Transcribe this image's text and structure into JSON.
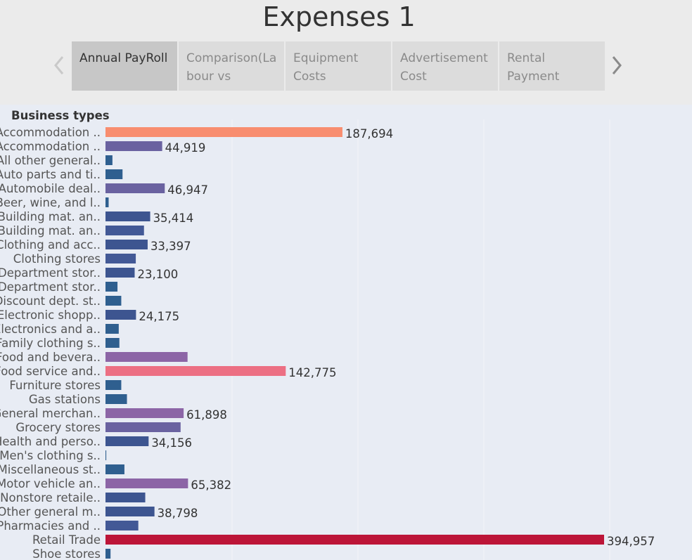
{
  "header": {
    "title": "Expenses 1"
  },
  "tabs": [
    {
      "label": "Annual PayRoll",
      "active": true
    },
    {
      "label": "Comparison(Labour vs",
      "active": false
    },
    {
      "label": "Equipment Costs",
      "active": false
    },
    {
      "label": "Advertisement Cost",
      "active": false
    },
    {
      "label": "Rental Payment",
      "active": false
    }
  ],
  "icons": {
    "prev": "chevron-left-icon",
    "next": "chevron-right-icon"
  },
  "colors": {
    "background": "#ebebeb",
    "chart_background": "#e8ecf4"
  },
  "chart_data": {
    "type": "bar",
    "orientation": "horizontal",
    "title": "",
    "row_header": "Business types",
    "xlabel": "",
    "ylabel": "",
    "xlim": [
      0,
      420000
    ],
    "grid": true,
    "categories": [
      "Accommodation ..",
      "Accommodation ..",
      "All other general..",
      "Auto parts and ti..",
      "Automobile deal..",
      "Beer, wine, and l..",
      "Building mat. an..",
      "Building mat. an..",
      "Clothing and acc..",
      "Clothing stores",
      "Department stor..",
      "Department stor..",
      "Discount dept. st..",
      "Electronic shopp..",
      "Electronics and a..",
      "Family clothing s..",
      "Food and bevera..",
      "Food service and..",
      "Furniture stores",
      "Gas stations",
      "General merchan..",
      "Grocery stores",
      "Health and perso..",
      "Men's clothing s..",
      "Miscellaneous st..",
      "Motor vehicle an..",
      "Nonstore retaile..",
      "Other general m..",
      "Pharmacies and ..",
      "Retail Trade",
      "Shoe stores"
    ],
    "values": [
      187694,
      44919,
      5500,
      13500,
      46947,
      2500,
      35414,
      30500,
      33397,
      24000,
      23100,
      9500,
      12500,
      24175,
      10500,
      11000,
      65000,
      142775,
      12500,
      17000,
      61898,
      59500,
      34156,
      600,
      15000,
      65382,
      31500,
      38798,
      26000,
      394957,
      4000
    ],
    "data_labels": [
      "187,694",
      "44,919",
      "",
      "",
      "46,947",
      "",
      "35,414",
      "",
      "33,397",
      "",
      "23,100",
      "",
      "",
      "24,175",
      "",
      "",
      "",
      "142,775",
      "",
      "",
      "61,898",
      "",
      "34,156",
      "",
      "",
      "65,382",
      "",
      "38,798",
      "",
      "394,957",
      ""
    ],
    "colors": [
      "#f88d6f",
      "#6a62a0",
      "#2f5f8f",
      "#2f5f8f",
      "#6a62a0",
      "#2f5f8f",
      "#3d5590",
      "#435996",
      "#3d5590",
      "#435996",
      "#3d5590",
      "#2f5f8f",
      "#2f5f8f",
      "#3d5590",
      "#2f5f8f",
      "#2f5f8f",
      "#8c65a6",
      "#ec6f83",
      "#2f5f8f",
      "#2f5f8f",
      "#8c65a6",
      "#6a62a0",
      "#3d5590",
      "#2f5f8f",
      "#2f5f8f",
      "#8c65a6",
      "#3d5590",
      "#3d5590",
      "#435996",
      "#bc1538",
      "#2f5f8f"
    ]
  }
}
